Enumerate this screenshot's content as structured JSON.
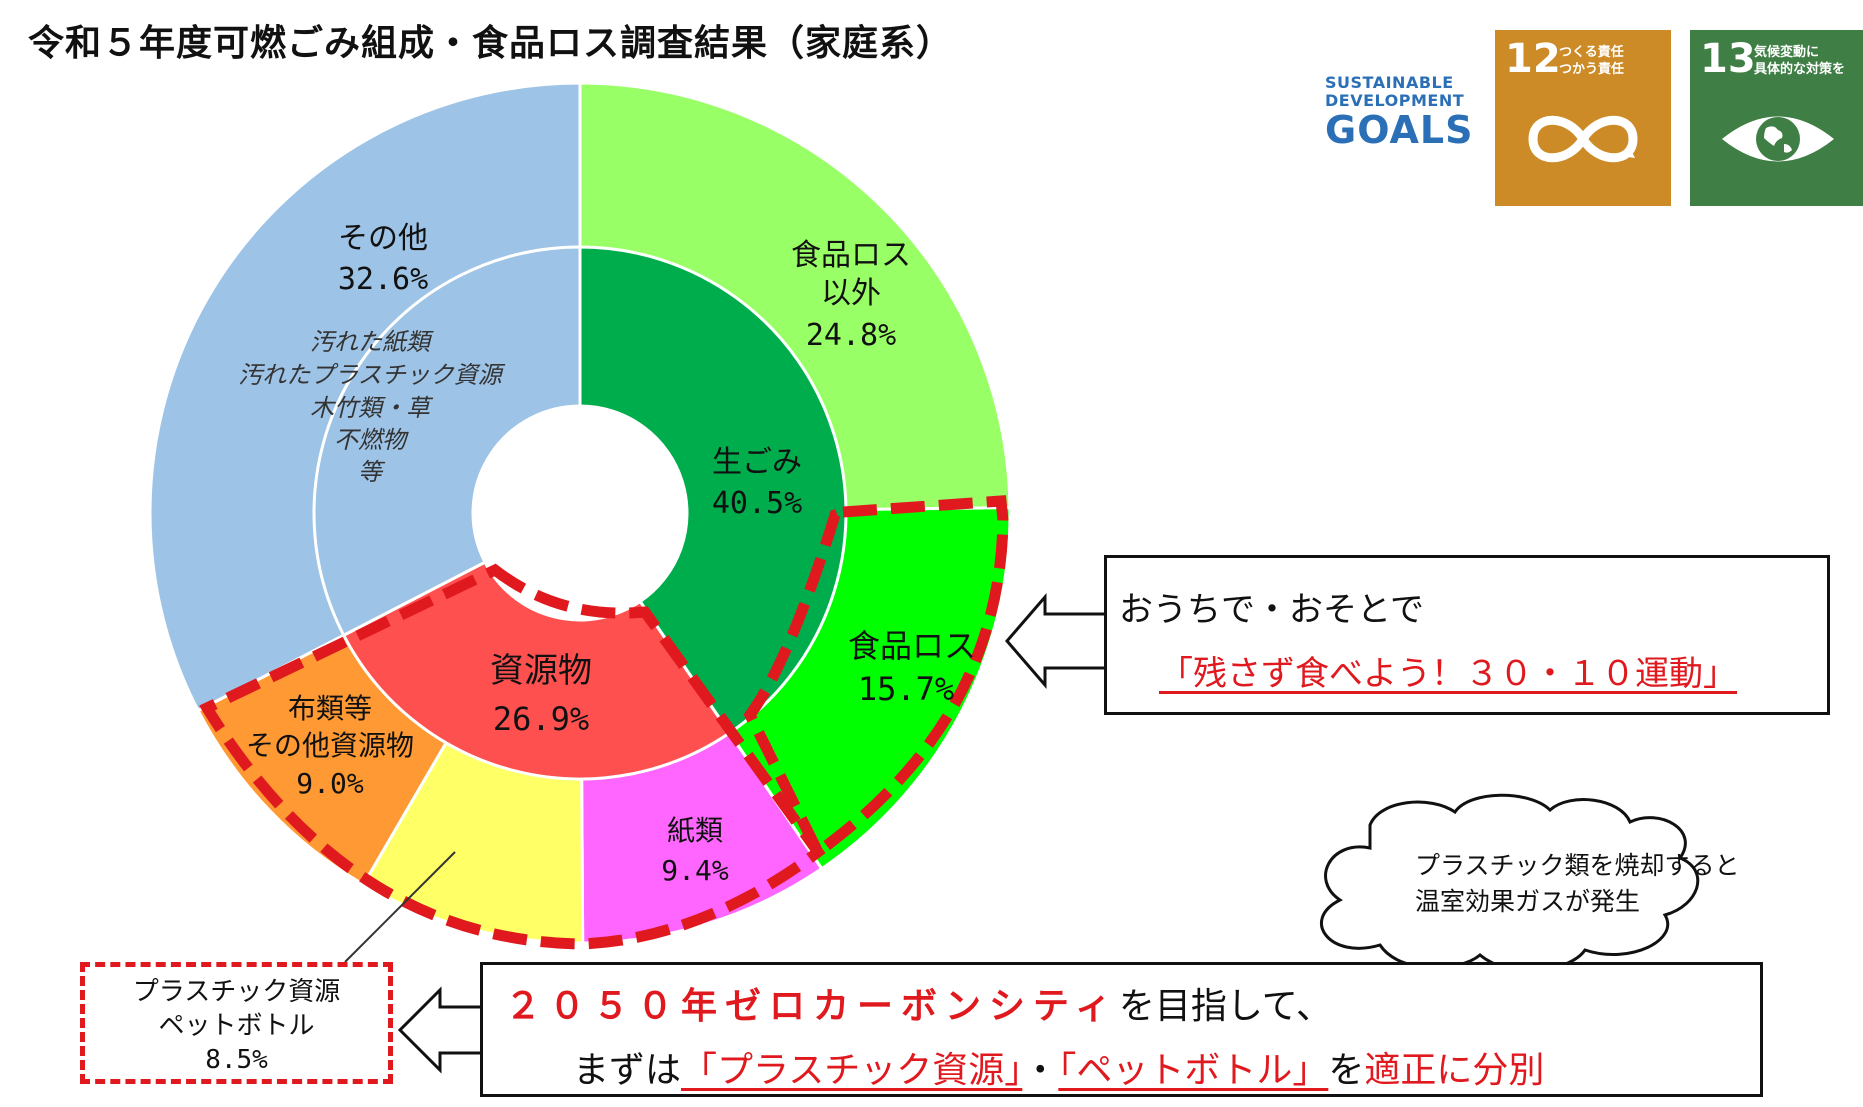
{
  "title": "令和５年度可燃ごみ組成・食品ロス調査結果（家庭系）",
  "sdg": {
    "logo_line1": "SUSTAINABLE",
    "logo_line2": "DEVELOPMENT",
    "logo_line3": "GOALS",
    "goal12_number": "12",
    "goal12_text_1": "つくる責任",
    "goal12_text_2": "つかう責任",
    "goal12_color": "#cc8b27",
    "goal12_icon": "infinity-icon",
    "goal13_number": "13",
    "goal13_text_1": "気候変動に",
    "goal13_text_2": "具体的な対策を",
    "goal13_color": "#3f7e44",
    "goal13_icon": "eye-globe-icon"
  },
  "chart_data": {
    "type": "pie",
    "subtype": "nested-donut",
    "inner": [
      {
        "name": "生ごみ",
        "value": 40.5,
        "label": "40.5%",
        "color": "#00ad4c"
      },
      {
        "name": "資源物",
        "value": 26.9,
        "label": "26.9%",
        "color": "#ff5050"
      },
      {
        "name": "その他",
        "value": 32.6,
        "label": "32.6%",
        "color": "#9dc3e6"
      }
    ],
    "outer": [
      {
        "name": "食品ロス以外",
        "name_lines": [
          "食品ロス",
          "以外"
        ],
        "value": 24.8,
        "label": "24.8%",
        "color": "#99ff66"
      },
      {
        "name": "食品ロス",
        "name_lines": [
          "食品ロス"
        ],
        "value": 15.7,
        "label": "15.7%",
        "color": "#00ff00"
      },
      {
        "name": "紙類",
        "name_lines": [
          "紙類"
        ],
        "value": 9.4,
        "label": "9.4%",
        "color": "#ff66ff"
      },
      {
        "name": "プラスチック資源ペットボトル",
        "name_lines": [],
        "value": 8.5,
        "label": "8.5%",
        "color": "#ffff66"
      },
      {
        "name": "布類等その他資源物",
        "name_lines": [
          "布類等",
          "その他資源物"
        ],
        "value": 9.0,
        "label": "9.0%",
        "color": "#ff9933"
      },
      {
        "name": "その他",
        "name_lines": [],
        "value": 32.6,
        "label": "",
        "color": "#9dc3e6"
      }
    ],
    "other_examples": [
      "汚れた紙類",
      "汚れたプラスチック資源",
      "木竹類・草",
      "不燃物",
      "等"
    ]
  },
  "callout_foodloss": {
    "line1": "おうちで・おそとで",
    "line2": "「残さず食べよう！３０・１０運動」"
  },
  "callout_plastic": {
    "line1": "プラスチック資源",
    "line2": "ペットボトル",
    "line3": "8.5%"
  },
  "callout_zero": {
    "p1": "２０５０年ゼロカーボンシティ",
    "p2": "を目指して、",
    "p3": "まずは",
    "p4": "「プラスチック資源」",
    "p5": "・",
    "p6": "「ペットボトル」",
    "p7": "を",
    "p8": "適正に分別"
  },
  "cloud": {
    "line1": "プラスチック類を焼却すると",
    "line2": "温室効果ガスが発生"
  }
}
